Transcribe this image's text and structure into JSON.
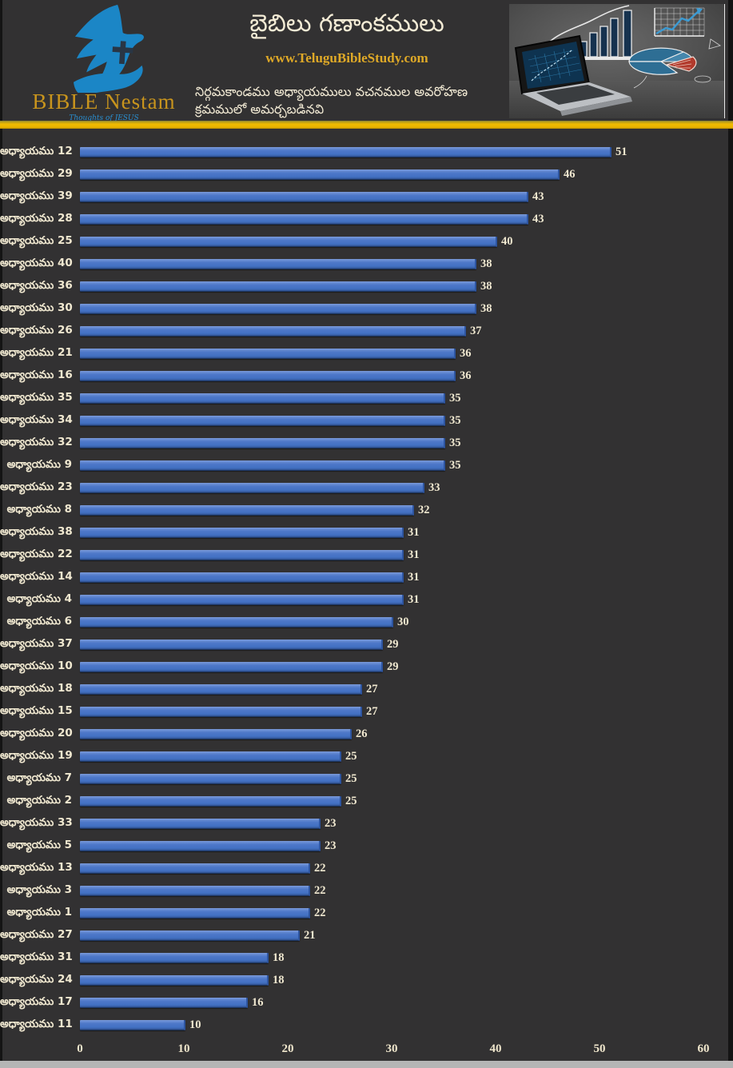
{
  "page": {
    "background": "#323132",
    "accent_band_color": "#edb800",
    "bottom_bar_color": "#b5b5b5"
  },
  "header": {
    "logo": {
      "name": "BIBLE Nestam",
      "tagline": "Thoughts of JESUS"
    },
    "title": "బైబిలు గణాంకములు",
    "website": "www.TeluguBibleStudy.com",
    "subtitle": "నిర్గమకాండము అధ్యాయములు వచనముల అవరోహణ క్రమములో అమర్చబడినవి"
  },
  "chart_data": {
    "type": "bar",
    "orientation": "horizontal",
    "title": "బైబిలు గణాంకములు",
    "sort": "descending",
    "grid": false,
    "value_labels": true,
    "bar_color": "#4472c4",
    "label_color": "#f0e8d0",
    "xlim": [
      0,
      60
    ],
    "x_ticks": [
      0,
      10,
      20,
      30,
      40,
      50,
      60
    ],
    "categories": [
      "అధ్యాయము 12",
      "అధ్యాయము 29",
      "అధ్యాయము 39",
      "అధ్యాయము 28",
      "అధ్యాయము 25",
      "అధ్యాయము 40",
      "అధ్యాయము 36",
      "అధ్యాయము 30",
      "అధ్యాయము 26",
      "అధ్యాయము 21",
      "అధ్యాయము 16",
      "అధ్యాయము 35",
      "అధ్యాయము 34",
      "అధ్యాయము 32",
      "అధ్యాయము 9",
      "అధ్యాయము 23",
      "అధ్యాయము 8",
      "అధ్యాయము 38",
      "అధ్యాయము 22",
      "అధ్యాయము 14",
      "అధ్యాయము 4",
      "అధ్యాయము 6",
      "అధ్యాయము 37",
      "అధ్యాయము 10",
      "అధ్యాయము 18",
      "అధ్యాయము 15",
      "అధ్యాయము 20",
      "అధ్యాయము 19",
      "అధ్యాయము 7",
      "అధ్యాయము 2",
      "అధ్యాయము 33",
      "అధ్యాయము 5",
      "అధ్యాయము 13",
      "అధ్యాయము 3",
      "అధ్యాయము 1",
      "అధ్యాయము 27",
      "అధ్యాయము 31",
      "అధ్యాయము 24",
      "అధ్యాయము 17",
      "అధ్యాయము 11"
    ],
    "values": [
      51,
      46,
      43,
      43,
      40,
      38,
      38,
      38,
      37,
      36,
      36,
      35,
      35,
      35,
      35,
      33,
      32,
      31,
      31,
      31,
      31,
      30,
      29,
      29,
      27,
      27,
      26,
      25,
      25,
      25,
      23,
      23,
      22,
      22,
      22,
      21,
      18,
      18,
      16,
      10
    ]
  }
}
